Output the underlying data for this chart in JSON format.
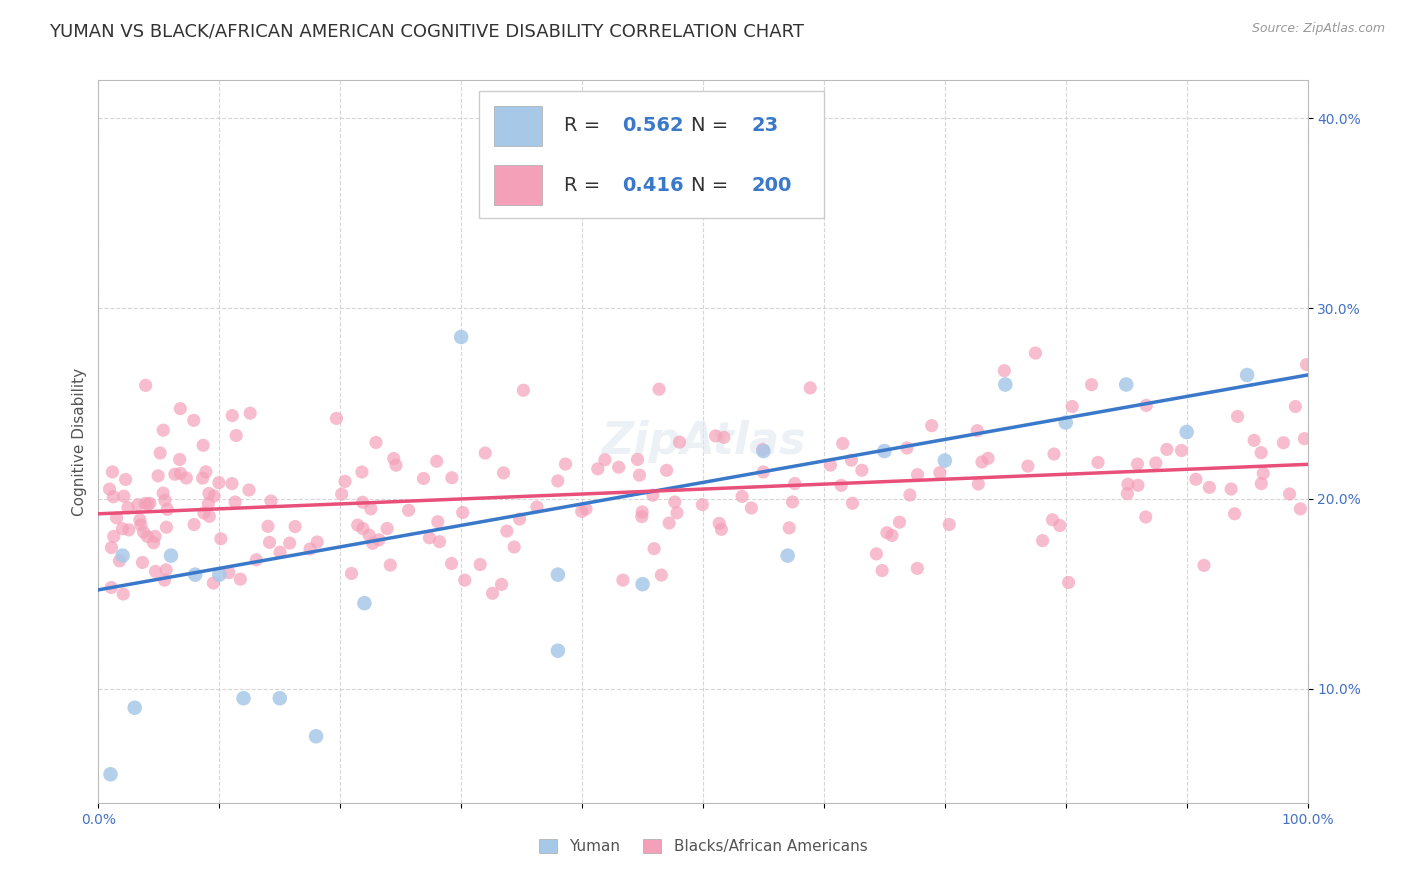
{
  "title": "YUMAN VS BLACK/AFRICAN AMERICAN COGNITIVE DISABILITY CORRELATION CHART",
  "source": "Source: ZipAtlas.com",
  "ylabel": "Cognitive Disability",
  "xlim": [
    0,
    1.0
  ],
  "ylim": [
    0.04,
    0.42
  ],
  "blue_color": "#a8c8e8",
  "pink_color": "#f4a0b8",
  "blue_line_color": "#3a78c9",
  "pink_line_color": "#e8507a",
  "R_blue": 0.562,
  "N_blue": 23,
  "R_pink": 0.416,
  "N_pink": 200,
  "legend_label_blue": "Yuman",
  "legend_label_pink": "Blacks/African Americans",
  "background_color": "#ffffff",
  "grid_color": "#cccccc",
  "title_fontsize": 13,
  "axis_label_fontsize": 11,
  "tick_fontsize": 10,
  "legend_fontsize": 14
}
